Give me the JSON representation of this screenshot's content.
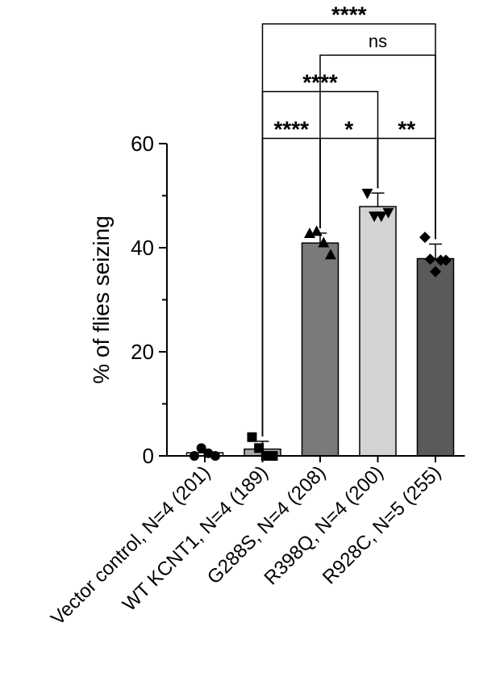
{
  "chart_data": {
    "type": "bar",
    "ylabel": "% of flies seizing",
    "xlabel": "",
    "ylim": [
      0,
      60
    ],
    "yticks": [
      0,
      20,
      40,
      60
    ],
    "grid": false,
    "categories": [
      "Vector control, N=4 (201)",
      "WT KCNT1, N=4 (189)",
      "G288S, N=4 (208)",
      "R398Q, N=4 (200)",
      "R928C, N=5 (255)"
    ],
    "values": [
      0.6,
      1.3,
      40.9,
      47.9,
      37.9
    ],
    "errors": [
      0.5,
      1.5,
      1.9,
      2.6,
      2.8
    ],
    "bar_colors": [
      "#ffffff",
      "#a9a9a9",
      "#7a7a7a",
      "#d3d3d3",
      "#5a5a5a"
    ],
    "points": [
      {
        "marker": "circle",
        "values": [
          0,
          1.5,
          0.5,
          0
        ]
      },
      {
        "marker": "square",
        "values": [
          3.6,
          1.5,
          0,
          0
        ]
      },
      {
        "marker": "triangle-up",
        "values": [
          42.8,
          43.2,
          41.0,
          38.7
        ]
      },
      {
        "marker": "triangle-down",
        "values": [
          50.4,
          46.0,
          46.0,
          46.7
        ]
      },
      {
        "marker": "diamond",
        "values": [
          42.0,
          37.8,
          35.4,
          37.6,
          37.6
        ]
      }
    ],
    "significance": [
      {
        "from": 1,
        "to": 4,
        "label": "****",
        "level_y": 83
      },
      {
        "from": 2,
        "to": 4,
        "label": "ns",
        "level_y": 77
      },
      {
        "from": 1,
        "to": 3,
        "label": "****",
        "level_y": 70
      },
      {
        "from": 1,
        "to": 2,
        "label": "****",
        "level_y": 61
      },
      {
        "from": 2,
        "to": 3,
        "label": "*",
        "level_y": 61
      },
      {
        "from": 3,
        "to": 4,
        "label": "**",
        "level_y": 61
      }
    ]
  }
}
